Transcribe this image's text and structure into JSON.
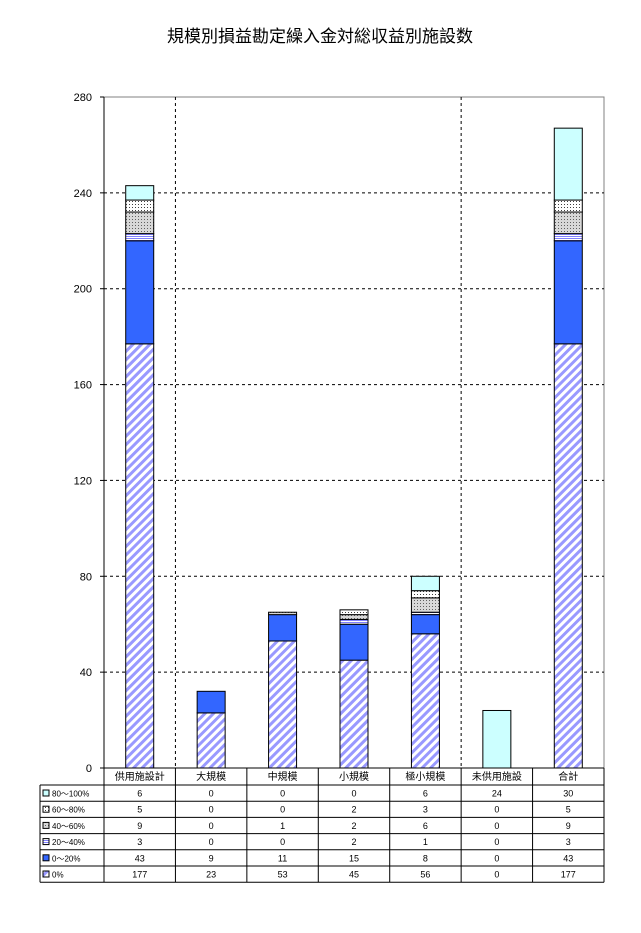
{
  "chart_data": {
    "type": "bar",
    "stacked": true,
    "title": "規模別損益勘定繰入金対総収益別施設数",
    "xlabel": "",
    "ylabel": "",
    "ylim": [
      0,
      280
    ],
    "yticks": [
      0,
      40,
      80,
      120,
      160,
      200,
      240,
      280
    ],
    "categories": [
      "供用施設計",
      "大規模",
      "中規模",
      "小規模",
      "極小規模",
      "未供用施設",
      "合計"
    ],
    "grid": true,
    "data_table": true,
    "series": [
      {
        "name": "0%",
        "values": [
          177,
          23,
          53,
          45,
          56,
          0,
          177
        ],
        "color": "#9999ff",
        "pattern": "diagonal-stripe"
      },
      {
        "name": "0～20%",
        "values": [
          43,
          9,
          11,
          15,
          8,
          0,
          43
        ],
        "color": "#3366ff",
        "pattern": "solid"
      },
      {
        "name": "20～40%",
        "values": [
          3,
          0,
          0,
          2,
          1,
          0,
          3
        ],
        "color": "#9999ff",
        "pattern": "horizontal-stripe"
      },
      {
        "name": "40～60%",
        "values": [
          9,
          0,
          1,
          2,
          6,
          0,
          9
        ],
        "color": "#c0c0c0",
        "pattern": "dots"
      },
      {
        "name": "60～80%",
        "values": [
          5,
          0,
          0,
          2,
          3,
          0,
          5
        ],
        "color": "#ffffff",
        "pattern": "dots"
      },
      {
        "name": "80～100%",
        "values": [
          6,
          0,
          0,
          0,
          6,
          24,
          30
        ],
        "color": "#ccffff",
        "pattern": "solid"
      }
    ]
  }
}
